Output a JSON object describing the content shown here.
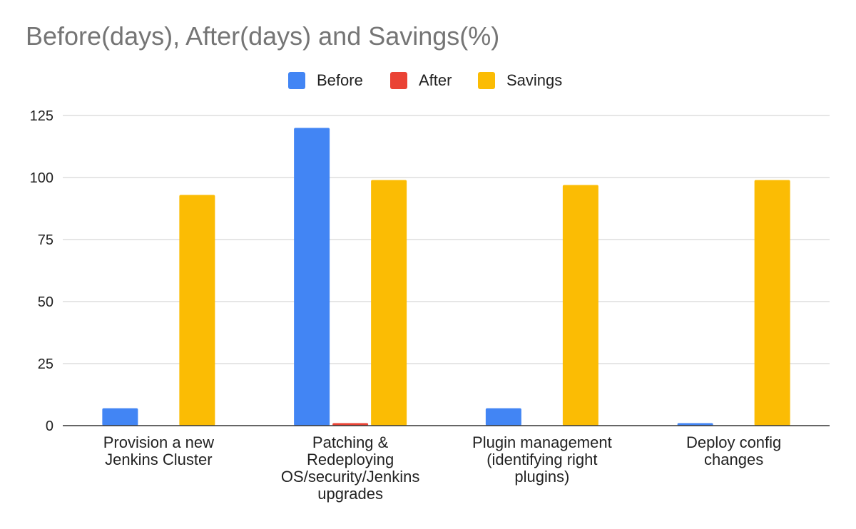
{
  "chart_data": {
    "type": "bar",
    "title": "Before(days), After(days) and Savings(%)",
    "categories": [
      [
        "Provision a new",
        "Jenkins Cluster"
      ],
      [
        "Patching &",
        "Redeploying",
        "OS/security/Jenkins",
        "upgrades"
      ],
      [
        "Plugin management",
        "(identifying right",
        "plugins)"
      ],
      [
        "Deploy config",
        "changes"
      ]
    ],
    "series": [
      {
        "name": "Before",
        "color": "#4285f4",
        "values": [
          7,
          120,
          7,
          1
        ]
      },
      {
        "name": "After",
        "color": "#ea4335",
        "values": [
          0,
          1,
          0,
          0
        ]
      },
      {
        "name": "Savings",
        "color": "#fbbc04",
        "values": [
          93,
          99,
          97,
          99
        ]
      }
    ],
    "ylim": [
      0,
      125
    ],
    "yticks": [
      0,
      25,
      50,
      75,
      100,
      125
    ],
    "xlabel": "",
    "ylabel": "",
    "grid": true,
    "legend_position": "top"
  }
}
